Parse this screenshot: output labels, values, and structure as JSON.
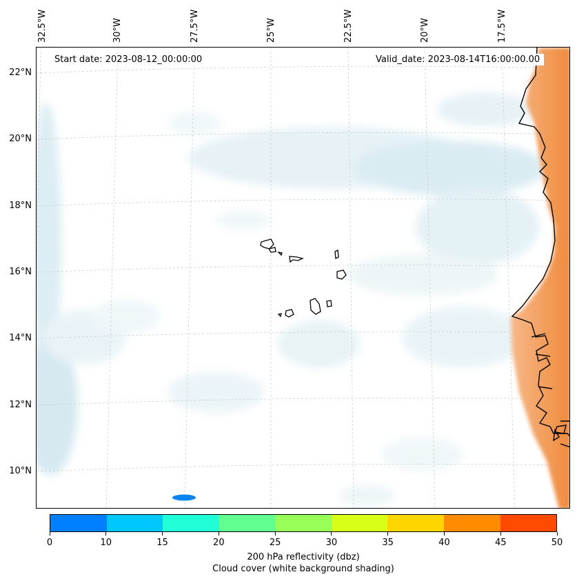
{
  "map": {
    "start_date": "Start date: 2023-08-12_00:00:00",
    "valid_date": "Valid_date: 2023-08-14T16:00:00.00",
    "longitude_labels": [
      "32.5°W",
      "30°W",
      "27.5°W",
      "25°W",
      "22.5°W",
      "20°W",
      "17.5°W"
    ],
    "latitude_labels": [
      "22°N",
      "20°N",
      "18°N",
      "16°N",
      "14°N",
      "12°N",
      "10°N"
    ],
    "region": "Cape Verde Islands and West African coast",
    "colors": {
      "land_warm": "#f08a3c",
      "cloud_shade": "#cfe6ee",
      "reflectivity_echo": "#0a84f0",
      "coastline": "#000000"
    }
  },
  "colorbar": {
    "ticks": [
      "0",
      "10",
      "15",
      "20",
      "25",
      "30",
      "35",
      "40",
      "45",
      "50"
    ],
    "colors": [
      "#0080ff",
      "#00c8ff",
      "#20ffd8",
      "#60ff90",
      "#98ff58",
      "#d8ff18",
      "#ffd600",
      "#ff8c00",
      "#ff4a00"
    ],
    "label": "200 hPa reflectivity (dbz)",
    "sublabel": "Cloud cover (white background shading)"
  }
}
